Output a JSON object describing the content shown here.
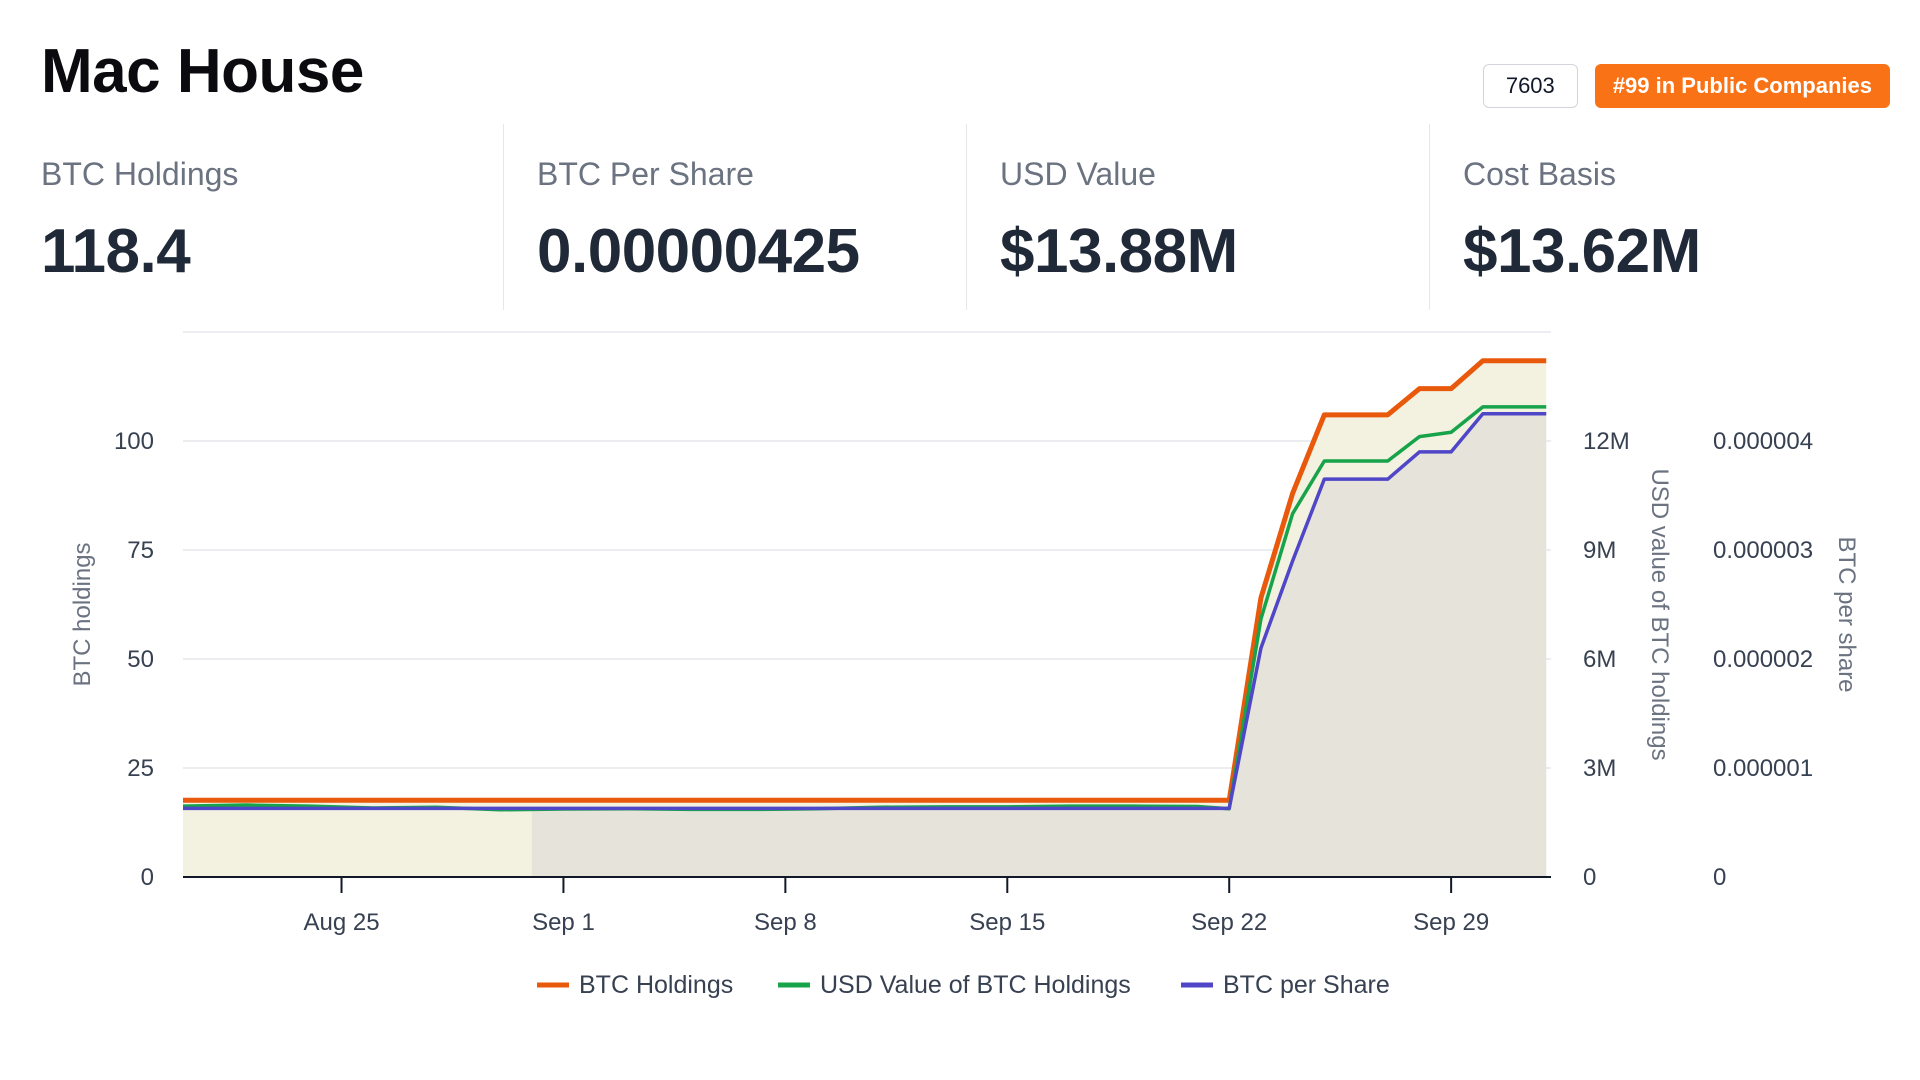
{
  "header": {
    "title": "Mac House",
    "id_badge": "7603",
    "rank_badge": "#99 in Public Companies"
  },
  "stats": [
    {
      "label": "BTC Holdings",
      "value": "118.4"
    },
    {
      "label": "BTC Per Share",
      "value": "0.00000425"
    },
    {
      "label": "USD Value",
      "value": "$13.88M"
    },
    {
      "label": "Cost Basis",
      "value": "$13.62M"
    }
  ],
  "colors": {
    "accent": "#f97316",
    "btc_holdings": "#e8590c",
    "usd_value": "#16a34a",
    "btc_per_share": "#4f46c8",
    "area_light": "#f3f1e0",
    "area_dark": "#e6e4da"
  },
  "chart_data": {
    "type": "line",
    "x": [
      "Aug 20",
      "Aug 22",
      "Aug 24",
      "Aug 26",
      "Aug 28",
      "Aug 30",
      "Sep 1",
      "Sep 3",
      "Sep 5",
      "Sep 7",
      "Sep 9",
      "Sep 11",
      "Sep 13",
      "Sep 15",
      "Sep 17",
      "Sep 19",
      "Sep 21",
      "Sep 22",
      "Sep 23",
      "Sep 24",
      "Sep 25",
      "Sep 26",
      "Sep 27",
      "Sep 28",
      "Sep 29",
      "Sep 30",
      "Oct 1",
      "Oct 2"
    ],
    "x_ticks": [
      "Aug 25",
      "Sep 1",
      "Sep 8",
      "Sep 15",
      "Sep 22",
      "Sep 29"
    ],
    "series": [
      {
        "name": "BTC Holdings",
        "axis": "left",
        "values": [
          17.6,
          17.6,
          17.6,
          17.6,
          17.6,
          17.6,
          17.6,
          17.6,
          17.6,
          17.6,
          17.6,
          17.6,
          17.6,
          17.6,
          17.6,
          17.6,
          17.6,
          17.6,
          64,
          88,
          106,
          106,
          106,
          112,
          112,
          118.4,
          118.4,
          118.4
        ]
      },
      {
        "name": "USD Value of BTC Holdings",
        "axis": "right1",
        "values": [
          1.95,
          1.98,
          1.95,
          1.9,
          1.92,
          1.85,
          1.87,
          1.88,
          1.86,
          1.86,
          1.88,
          1.92,
          1.93,
          1.93,
          1.95,
          1.95,
          1.94,
          1.88,
          7.1,
          10.0,
          11.45,
          11.45,
          11.45,
          12.12,
          12.24,
          12.94,
          12.94,
          12.94
        ]
      },
      {
        "name": "BTC per Share",
        "axis": "right2",
        "values": [
          6.3e-07,
          6.3e-07,
          6.3e-07,
          6.3e-07,
          6.3e-07,
          6.3e-07,
          6.3e-07,
          6.3e-07,
          6.3e-07,
          6.3e-07,
          6.3e-07,
          6.3e-07,
          6.3e-07,
          6.3e-07,
          6.3e-07,
          6.3e-07,
          6.3e-07,
          6.3e-07,
          2.1e-06,
          2.9e-06,
          3.65e-06,
          3.65e-06,
          3.65e-06,
          3.9e-06,
          3.9e-06,
          4.25e-06,
          4.25e-06,
          4.25e-06
        ]
      }
    ],
    "yaxis_left": {
      "label": "BTC holdings",
      "ticks": [
        "0",
        "25",
        "50",
        "75",
        "100"
      ],
      "range": [
        0,
        125
      ]
    },
    "yaxis_right1": {
      "label": "USD value of BTC holdings",
      "ticks": [
        "0",
        "3M",
        "6M",
        "9M",
        "12M"
      ],
      "range_millions": [
        0,
        15
      ]
    },
    "yaxis_right2": {
      "label": "BTC per share",
      "ticks": [
        "0",
        "0.000001",
        "0.000002",
        "0.000003",
        "0.000004"
      ],
      "range": [
        0,
        5e-06
      ]
    },
    "legend_position": "bottom",
    "grid": true
  }
}
